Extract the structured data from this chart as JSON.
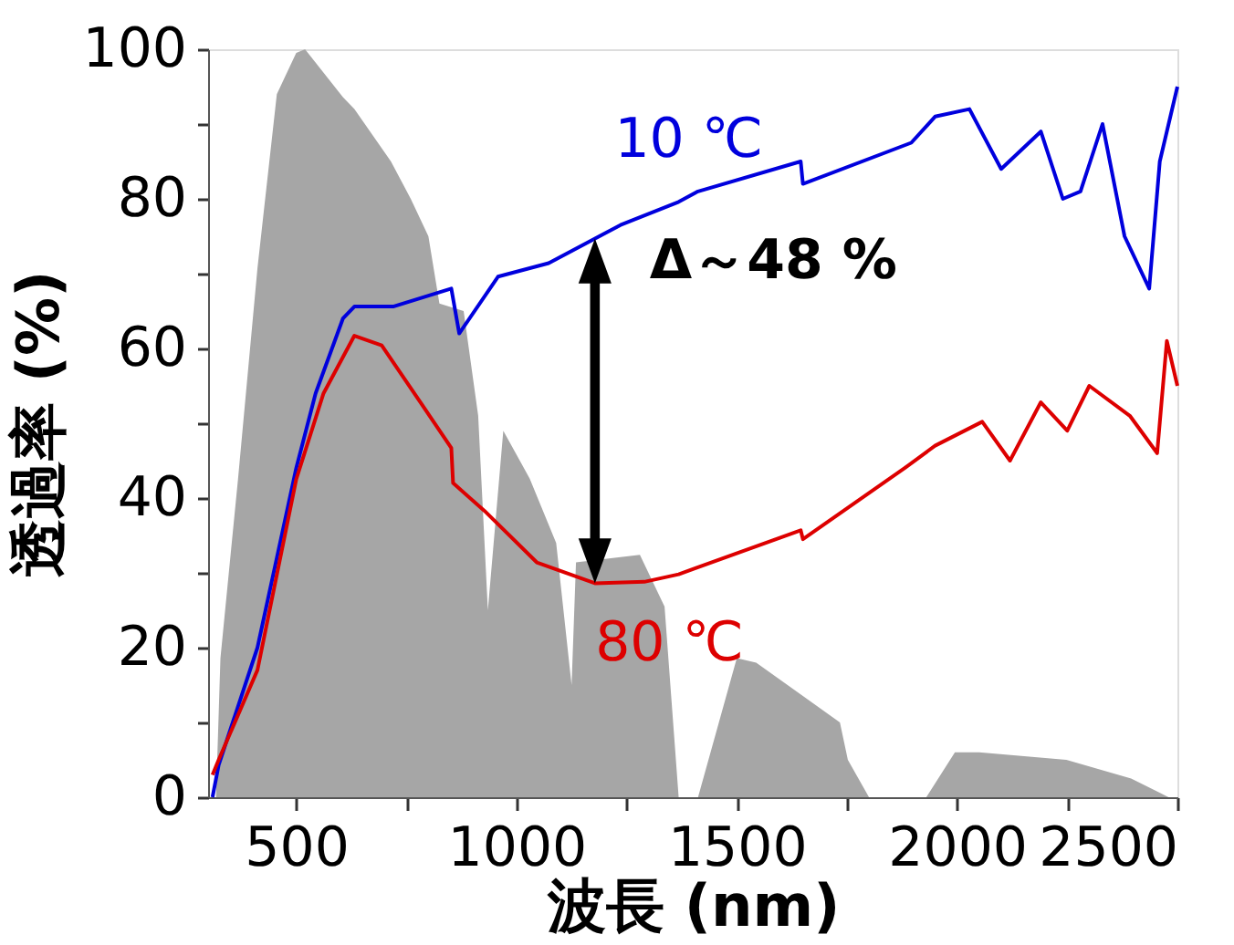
{
  "chart_data": {
    "type": "line",
    "xlabel": "波長 (nm)",
    "ylabel": "透過率 (%)",
    "xlim": [
      300,
      2500
    ],
    "ylim": [
      0,
      100
    ],
    "xticks": [
      500,
      {
        "value": 750,
        "label": null
      },
      1000,
      {
        "value": 1250,
        "label": null
      },
      1500,
      {
        "value": 1750,
        "label": null
      },
      2000,
      {
        "value": 2250,
        "label": null
      },
      2500
    ],
    "yticks": [
      0,
      {
        "value": 10,
        "label": null
      },
      20,
      {
        "value": 30,
        "label": null
      },
      40,
      {
        "value": 50,
        "label": null
      },
      60,
      {
        "value": 70,
        "label": null
      },
      80,
      {
        "value": 90,
        "label": null
      },
      100
    ],
    "grid": false,
    "legend": false,
    "marker": "none",
    "line_style": "solid",
    "series": [
      {
        "type": "area",
        "color": "#a6a6a6",
        "x": [
          318,
          328,
          368,
          412,
          456,
          500,
          520,
          606,
          632,
          715,
          760,
          800,
          825,
          880,
          913,
          935,
          970,
          1030,
          1090,
          1125,
          1135,
          1280,
          1336,
          1368,
          1412,
          1500,
          1544,
          1734,
          1752,
          1800,
          1930,
          1995,
          2050,
          2248,
          2395,
          2480
        ],
        "values": [
          0,
          18.6,
          42.6,
          70.7,
          94,
          99.5,
          100,
          93.6,
          92,
          85,
          80,
          75,
          66,
          65,
          51,
          25,
          49,
          42.6,
          34,
          15,
          31.4,
          32.4,
          25.5,
          0,
          0,
          18.6,
          18,
          10,
          5,
          0,
          0,
          6,
          6,
          5,
          2.5,
          0
        ]
      },
      {
        "name": "10 ℃",
        "type": "line",
        "color": "#0000dd",
        "x": [
          310,
          324,
          412,
          456,
          500,
          544,
          606,
          632,
          720,
          852,
          870,
          958,
          1073,
          1236,
          1368,
          1412,
          1645,
          1650,
          1896,
          1950,
          2028,
          2100,
          2190,
          2240,
          2280,
          2330,
          2380,
          2436,
          2460,
          2500
        ],
        "values": [
          0,
          4.3,
          20,
          32,
          44,
          54,
          64,
          65.6,
          65.6,
          68,
          62,
          69.6,
          71.4,
          76.5,
          79.6,
          81,
          85,
          82,
          87.5,
          91,
          92,
          84,
          89,
          80,
          81,
          90,
          75,
          68,
          85,
          95
        ]
      },
      {
        "name": "80 ℃",
        "type": "line",
        "color": "#dd0000",
        "x": [
          310,
          324,
          412,
          500,
          562,
          632,
          694,
          782,
          852,
          856,
          927,
          1046,
          1178,
          1290,
          1368,
          1645,
          1650,
          1881,
          1950,
          2057,
          2120,
          2190,
          2250,
          2300,
          2392,
          2454,
          2476,
          2500
        ],
        "values": [
          3,
          5,
          17,
          42.5,
          54,
          61.7,
          60.4,
          52.8,
          46.7,
          42,
          38.3,
          31.4,
          28.6,
          28.8,
          29.8,
          35.7,
          34.5,
          44,
          47,
          50.2,
          45,
          52.8,
          49,
          55,
          51,
          46,
          61,
          55
        ]
      }
    ],
    "annotations": [
      "Δ～48 %"
    ]
  }
}
